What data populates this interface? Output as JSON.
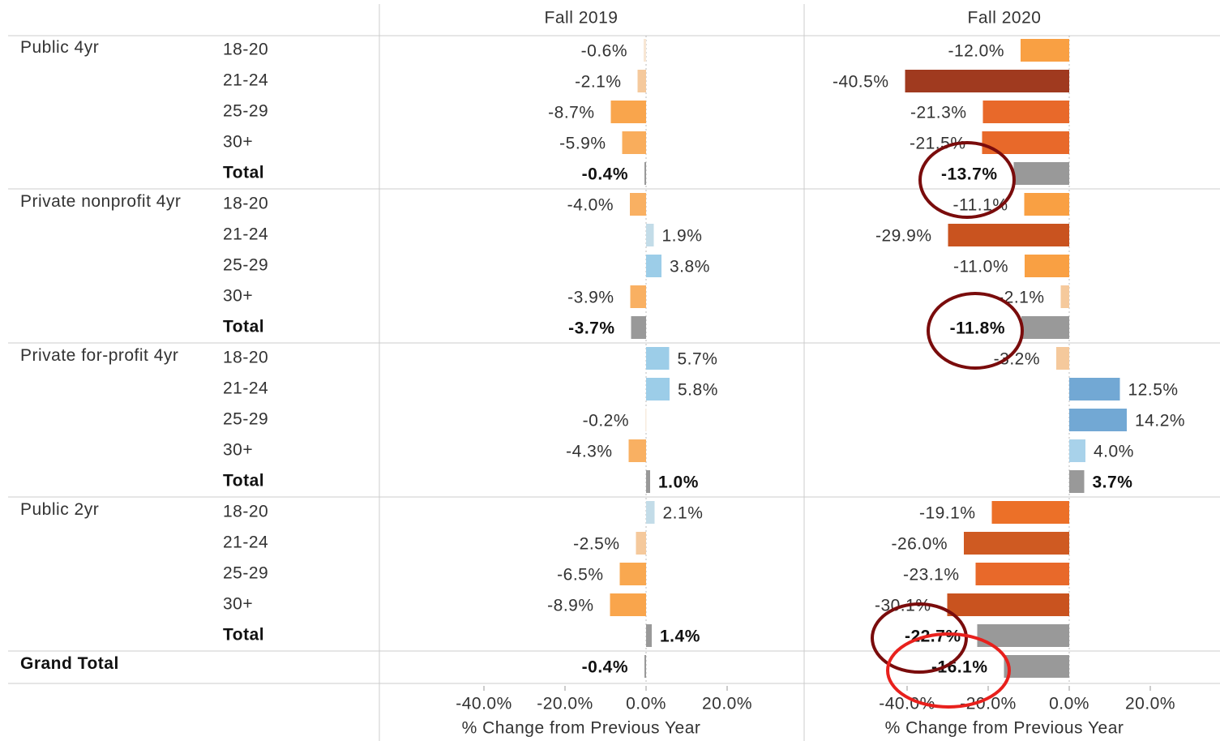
{
  "chart_data": {
    "type": "bar",
    "orientation": "horizontal",
    "groups": [
      {
        "name": "Public 4yr",
        "categories": [
          "18-20",
          "21-24",
          "25-29",
          "30+",
          "Total"
        ]
      },
      {
        "name": "Private nonprofit 4yr",
        "categories": [
          "18-20",
          "21-24",
          "25-29",
          "30+",
          "Total"
        ]
      },
      {
        "name": "Private for-profit 4yr",
        "categories": [
          "18-20",
          "21-24",
          "25-29",
          "30+",
          "Total"
        ]
      },
      {
        "name": "Public 2yr",
        "categories": [
          "18-20",
          "21-24",
          "25-29",
          "30+",
          "Total"
        ]
      },
      {
        "name": "Grand Total",
        "categories": [
          null
        ]
      }
    ],
    "series": [
      {
        "name": "Fall 2019",
        "values": [
          -0.6,
          -2.1,
          -8.7,
          -5.9,
          -0.4,
          -4.0,
          1.9,
          3.8,
          -3.9,
          -3.7,
          5.7,
          5.8,
          -0.2,
          -4.3,
          1.0,
          2.1,
          -2.5,
          -6.5,
          -8.9,
          1.4,
          -0.4
        ],
        "value_labels": [
          "-0.6%",
          "-2.1%",
          "-8.7%",
          "-5.9%",
          "-0.4%",
          "-4.0%",
          "1.9%",
          "3.8%",
          "-3.9%",
          "-3.7%",
          "5.7%",
          "5.8%",
          "-0.2%",
          "-4.3%",
          "1.0%",
          "2.1%",
          "-2.5%",
          "-6.5%",
          "-8.9%",
          "1.4%",
          "-0.4%"
        ],
        "colors": [
          "#f7e6d4",
          "#f5c99c",
          "#f9a54c",
          "#f9ad5c",
          "#999999",
          "#f9b062",
          "#c3dce8",
          "#9ccde8",
          "#f9b062",
          "#999999",
          "#9ccde8",
          "#9ccde8",
          "#f7ebde",
          "#f9b062",
          "#999999",
          "#c3dce8",
          "#f5c99c",
          "#f9a850",
          "#f9a54c",
          "#999999",
          "#999999"
        ]
      },
      {
        "name": "Fall 2020",
        "values": [
          -12.0,
          -40.5,
          -21.3,
          -21.5,
          -13.7,
          -11.1,
          -29.9,
          -11.0,
          -2.1,
          -11.8,
          -3.2,
          12.5,
          14.2,
          4.0,
          3.7,
          -19.1,
          -26.0,
          -23.1,
          -30.1,
          -22.7,
          -16.1
        ],
        "value_labels": [
          "-12.0%",
          "-40.5%",
          "-21.3%",
          "-21.5%",
          "-13.7%",
          "-11.1%",
          "-29.9%",
          "-11.0%",
          "-2.1%",
          "-11.8%",
          "-3.2%",
          "12.5%",
          "14.2%",
          "4.0%",
          "3.7%",
          "-19.1%",
          "-26.0%",
          "-23.1%",
          "-30.1%",
          "-22.7%",
          "-16.1%"
        ],
        "colors": [
          "#f9a043",
          "#a03a1f",
          "#e8692a",
          "#e8692a",
          "#999999",
          "#f9a043",
          "#c9531f",
          "#f9a043",
          "#f5c99c",
          "#999999",
          "#f5c99c",
          "#72a8d4",
          "#72a8d4",
          "#a8d2ea",
          "#999999",
          "#ec7028",
          "#cf5a22",
          "#e8692a",
          "#c9531f",
          "#999999",
          "#999999"
        ]
      }
    ],
    "xlabel": "% Change from Previous Year",
    "xlim": [
      -65,
      37
    ],
    "xticks": [
      {
        "value": -40,
        "label": "-40.0%"
      },
      {
        "value": -20,
        "label": "-20.0%"
      },
      {
        "value": 0,
        "label": "0.0%"
      },
      {
        "value": 20,
        "label": "20.0%"
      }
    ]
  }
}
